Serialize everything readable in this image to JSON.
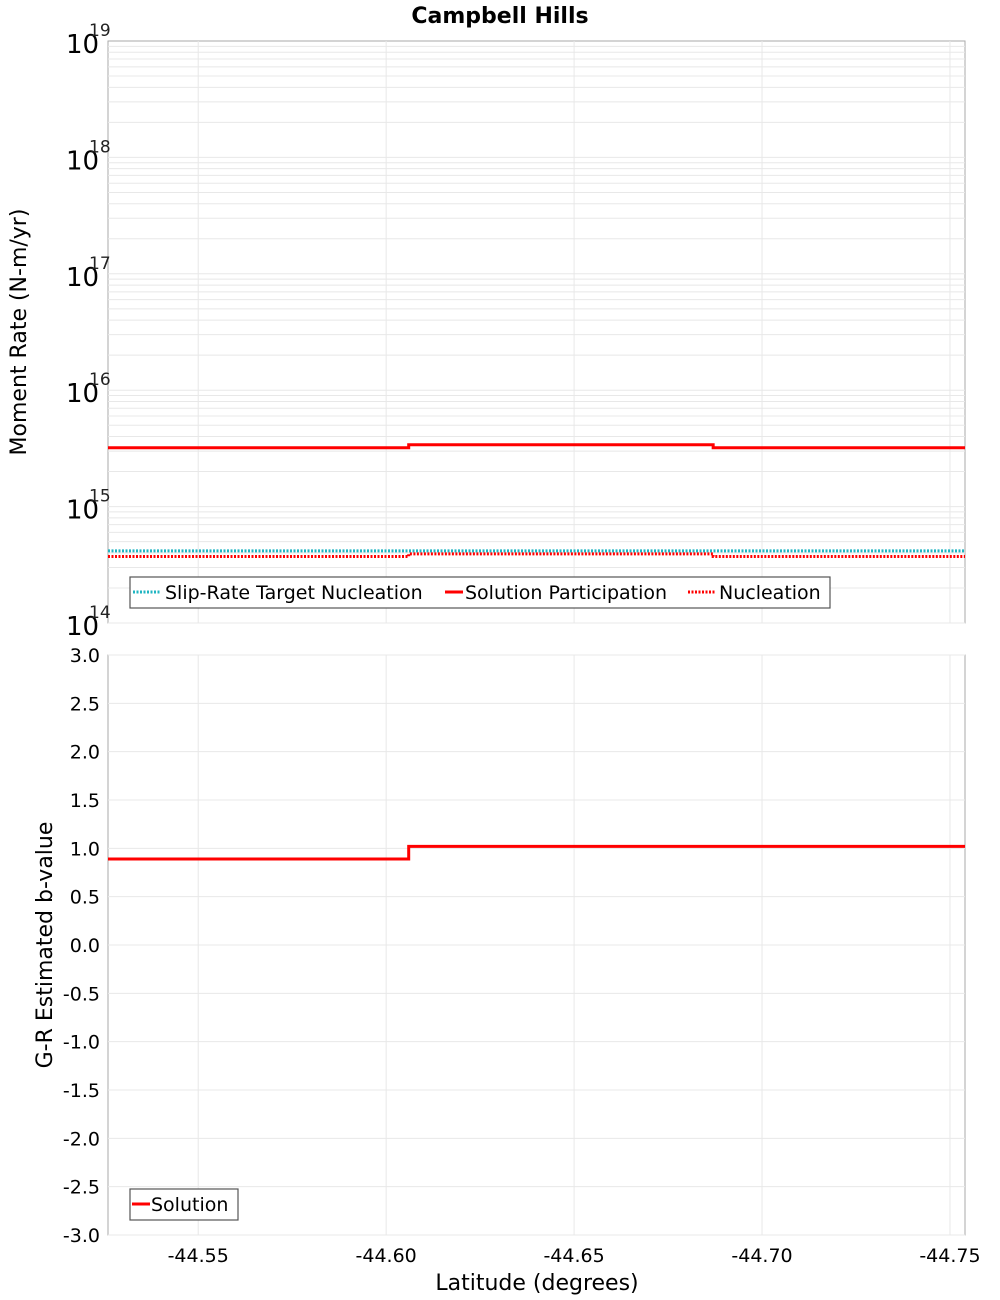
{
  "chart_data": [
    {
      "type": "line",
      "title": "Campbell Hills",
      "xlabel": "Latitude (degrees)",
      "ylabel": "Moment Rate (N-m/yr)",
      "yscale": "log",
      "ylim": [
        100000000000000.0,
        1e+19
      ],
      "xlim": [
        -44.526,
        -44.754
      ],
      "y_ticks": [
        {
          "base": "10",
          "exp": "19"
        },
        {
          "base": "10",
          "exp": "18"
        },
        {
          "base": "10",
          "exp": "17"
        },
        {
          "base": "10",
          "exp": "16"
        },
        {
          "base": "10",
          "exp": "15"
        },
        {
          "base": "10",
          "exp": "14"
        }
      ],
      "grid": true,
      "legend_position": "lower-left",
      "segments_x": [
        -44.526,
        -44.606,
        -44.687,
        -44.754
      ],
      "series": [
        {
          "name": "Slip-Rate Target Nucleation",
          "style": "dotted",
          "color": "#1fb5c2",
          "values": [
            400000000000000.0,
            400000000000000.0,
            400000000000000.0
          ]
        },
        {
          "name": "Solution Participation",
          "style": "solid",
          "color": "#ff0000",
          "values": [
            3200000000000000.0,
            3400000000000000.0,
            3200000000000000.0
          ]
        },
        {
          "name": "Nucleation",
          "style": "dotted",
          "color": "#ff0000",
          "values": [
            380000000000000.0,
            400000000000000.0,
            380000000000000.0
          ]
        }
      ]
    },
    {
      "type": "line",
      "xlabel": "Latitude (degrees)",
      "ylabel": "G-R Estimated b-value",
      "ylim": [
        -3.0,
        3.0
      ],
      "xlim": [
        -44.526,
        -44.754
      ],
      "y_ticks": [
        "3.0",
        "2.5",
        "2.0",
        "1.5",
        "1.0",
        "0.5",
        "0.0",
        "-0.5",
        "-1.0",
        "-1.5",
        "-2.0",
        "-2.5",
        "-3.0"
      ],
      "x_ticks": [
        "-44.55",
        "-44.60",
        "-44.65",
        "-44.70",
        "-44.75"
      ],
      "grid": true,
      "legend_position": "lower-left",
      "segments_x": [
        -44.526,
        -44.606,
        -44.687,
        -44.754
      ],
      "series": [
        {
          "name": "Solution",
          "style": "solid",
          "color": "#ff0000",
          "values": [
            0.89,
            1.02,
            1.02
          ]
        }
      ]
    }
  ]
}
